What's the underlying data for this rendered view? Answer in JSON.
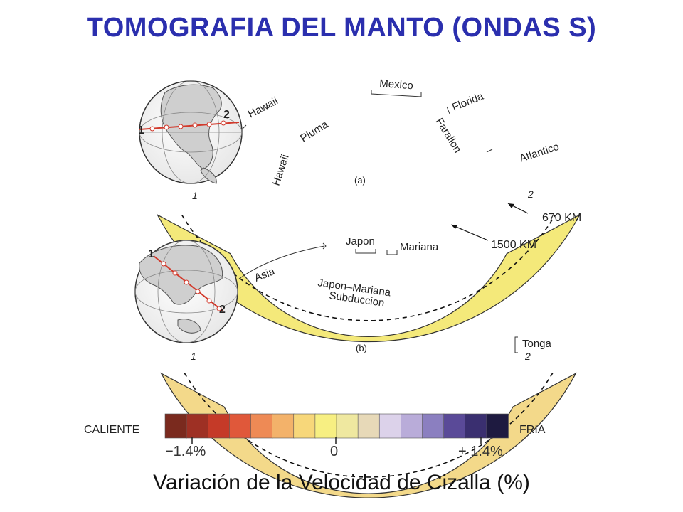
{
  "title": "TOMOGRAFIA DEL MANTO (ONDAS S)",
  "panel_a": {
    "letter": "(a)",
    "point1": "1",
    "point2": "2",
    "labels": {
      "hawaii_top": "Hawaii",
      "mexico": "Mexico",
      "florida": "Florida",
      "hawaii_plume": "Hawaii",
      "pluma": "Pluma",
      "farallon": "Farallon",
      "atlantico": "Atlantico"
    }
  },
  "panel_b": {
    "letter": "(b)",
    "point1": "1",
    "point2": "2",
    "labels": {
      "asia": "Asia",
      "japon": "Japon",
      "mariana": "Mariana",
      "subduction_line1": "Japon–Mariana",
      "subduction_line2": "Subduccion",
      "tonga": "Tonga"
    }
  },
  "depth_labels": {
    "d670": "670 KM",
    "d1500": "1500 KM"
  },
  "colorbar": {
    "left_label": "CALIENTE",
    "right_label": "FRIA",
    "tick_min": "−1.4%",
    "tick_mid": "0",
    "tick_max": "+ 1.4%",
    "colors": [
      "#7a2a1e",
      "#9e3024",
      "#c53a28",
      "#e0583a",
      "#ee8a55",
      "#f3b26a",
      "#f7d77a",
      "#f7ef82",
      "#efe8a0",
      "#e7d9b8",
      "#dcd2ea",
      "#b9acd9",
      "#8b7fc0",
      "#5a4a98",
      "#3a2f70",
      "#1e1a40"
    ]
  },
  "caption": "Variación de la Velocidad de Cizalla (%)"
}
